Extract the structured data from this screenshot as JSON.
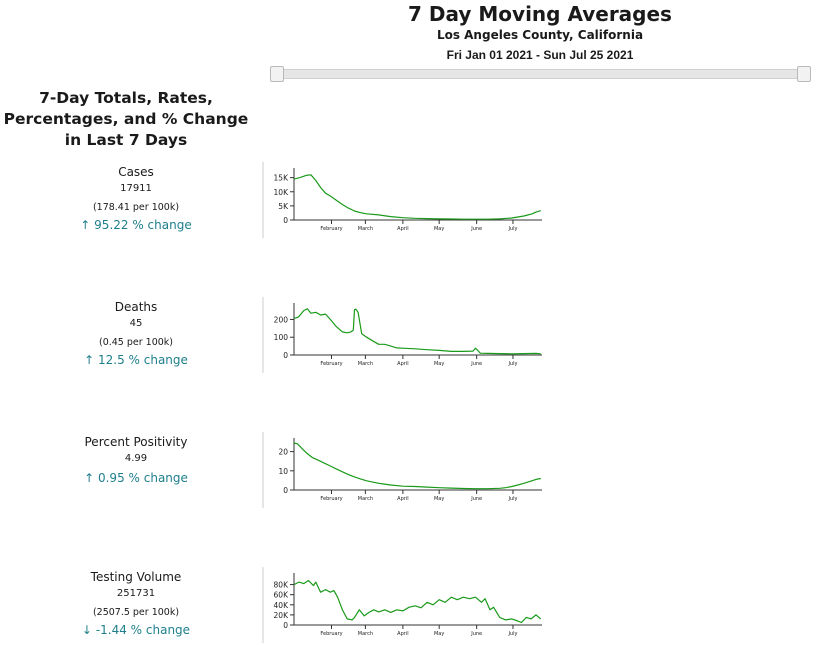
{
  "header": {
    "title": "7 Day Moving Averages",
    "subtitle": "Los Angeles County, California",
    "date_range": "Fri Jan 01 2021 - Sun Jul 25 2021"
  },
  "panel_title": "7-Day Totals, Rates, Percentages, and % Change in Last 7 Days",
  "metrics": [
    {
      "name": "Cases",
      "total": "17911",
      "rate": "(178.41 per 100k)",
      "change": "95.22 % change",
      "direction": "up"
    },
    {
      "name": "Deaths",
      "total": "45",
      "rate": "(0.45 per 100k)",
      "change": "12.5 % change",
      "direction": "up"
    },
    {
      "name": "Percent Positivity",
      "total": "4.99",
      "rate": "",
      "change": "0.95 % change",
      "direction": "up"
    },
    {
      "name": "Testing Volume",
      "total": "251731",
      "rate": "(2507.5 per 100k)",
      "change": "-1.44 % change",
      "direction": "down"
    }
  ],
  "colors": {
    "line": "#1a9a1a",
    "axis": "#333333",
    "change": "#1e7f8c",
    "separator": "#cccccc"
  },
  "chart_data": [
    {
      "type": "line",
      "title": "",
      "ylabel": "",
      "x_range": [
        0,
        205
      ],
      "ylim": [
        0,
        17000
      ],
      "month_ticks": [
        {
          "label": "February",
          "day": 31
        },
        {
          "label": "March",
          "day": 59
        },
        {
          "label": "April",
          "day": 90
        },
        {
          "label": "May",
          "day": 120
        },
        {
          "label": "June",
          "day": 151
        },
        {
          "label": "July",
          "day": 181
        }
      ],
      "y_ticks": [
        {
          "label": "0",
          "value": 0
        },
        {
          "label": "5K",
          "value": 5000
        },
        {
          "label": "10K",
          "value": 10000
        },
        {
          "label": "15K",
          "value": 15000
        }
      ],
      "x": [
        0,
        5,
        10,
        14,
        18,
        22,
        26,
        30,
        35,
        40,
        45,
        50,
        55,
        60,
        70,
        80,
        90,
        100,
        110,
        120,
        130,
        140,
        150,
        160,
        170,
        180,
        190,
        197,
        200,
        204
      ],
      "values": [
        14500,
        15000,
        15800,
        16000,
        14000,
        11500,
        9500,
        8500,
        7000,
        5500,
        4200,
        3200,
        2600,
        2200,
        1800,
        1200,
        800,
        600,
        500,
        400,
        350,
        300,
        280,
        300,
        400,
        700,
        1400,
        2200,
        2800,
        3300
      ]
    },
    {
      "type": "line",
      "title": "",
      "ylabel": "",
      "x_range": [
        0,
        205
      ],
      "ylim": [
        0,
        270
      ],
      "month_ticks": [
        {
          "label": "February",
          "day": 31
        },
        {
          "label": "March",
          "day": 59
        },
        {
          "label": "April",
          "day": 90
        },
        {
          "label": "May",
          "day": 120
        },
        {
          "label": "June",
          "day": 151
        },
        {
          "label": "July",
          "day": 181
        }
      ],
      "y_ticks": [
        {
          "label": "0",
          "value": 0
        },
        {
          "label": "100",
          "value": 100
        },
        {
          "label": "200",
          "value": 200
        }
      ],
      "x": [
        0,
        4,
        8,
        11,
        14,
        18,
        22,
        26,
        30,
        35,
        40,
        44,
        47,
        49,
        50,
        51,
        52,
        53,
        56,
        60,
        65,
        70,
        75,
        80,
        85,
        90,
        100,
        110,
        120,
        130,
        140,
        148,
        150,
        152,
        154,
        160,
        170,
        180,
        190,
        200,
        204
      ],
      "values": [
        205,
        215,
        250,
        260,
        235,
        240,
        225,
        230,
        200,
        160,
        130,
        125,
        130,
        140,
        255,
        258,
        250,
        240,
        120,
        100,
        80,
        60,
        60,
        50,
        40,
        38,
        35,
        30,
        26,
        20,
        20,
        22,
        38,
        25,
        10,
        9,
        8,
        7,
        8,
        9,
        7
      ]
    },
    {
      "type": "line",
      "title": "",
      "ylabel": "",
      "x_range": [
        0,
        205
      ],
      "ylim": [
        0,
        25
      ],
      "month_ticks": [
        {
          "label": "February",
          "day": 31
        },
        {
          "label": "March",
          "day": 59
        },
        {
          "label": "April",
          "day": 90
        },
        {
          "label": "May",
          "day": 120
        },
        {
          "label": "June",
          "day": 151
        },
        {
          "label": "July",
          "day": 181
        }
      ],
      "y_ticks": [
        {
          "label": "0",
          "value": 0
        },
        {
          "label": "10",
          "value": 10
        },
        {
          "label": "20",
          "value": 20
        }
      ],
      "x": [
        0,
        3,
        6,
        10,
        15,
        20,
        25,
        30,
        35,
        40,
        45,
        50,
        55,
        60,
        70,
        80,
        90,
        100,
        110,
        120,
        130,
        140,
        150,
        160,
        170,
        175,
        180,
        185,
        190,
        195,
        200,
        204
      ],
      "values": [
        24.5,
        24,
        22,
        19.5,
        17,
        15.5,
        14,
        12.5,
        11,
        9.5,
        8,
        6.8,
        5.8,
        4.8,
        3.5,
        2.6,
        2.0,
        1.8,
        1.5,
        1.2,
        1.0,
        0.8,
        0.7,
        0.7,
        0.9,
        1.2,
        1.8,
        2.6,
        3.5,
        4.5,
        5.5,
        6.0
      ]
    },
    {
      "type": "line",
      "title": "",
      "ylabel": "",
      "x_range": [
        0,
        205
      ],
      "ylim": [
        0,
        95000
      ],
      "month_ticks": [
        {
          "label": "February",
          "day": 31
        },
        {
          "label": "March",
          "day": 59
        },
        {
          "label": "April",
          "day": 90
        },
        {
          "label": "May",
          "day": 120
        },
        {
          "label": "June",
          "day": 151
        },
        {
          "label": "July",
          "day": 181
        }
      ],
      "y_ticks": [
        {
          "label": "0",
          "value": 0
        },
        {
          "label": "20K",
          "value": 20000
        },
        {
          "label": "40K",
          "value": 40000
        },
        {
          "label": "60K",
          "value": 60000
        },
        {
          "label": "80K",
          "value": 80000
        }
      ],
      "x": [
        0,
        4,
        8,
        12,
        16,
        18,
        22,
        26,
        30,
        33,
        36,
        40,
        44,
        48,
        50,
        54,
        58,
        62,
        66,
        70,
        75,
        80,
        85,
        90,
        95,
        100,
        105,
        110,
        115,
        120,
        125,
        130,
        135,
        140,
        145,
        150,
        155,
        158,
        162,
        165,
        170,
        175,
        180,
        185,
        188,
        192,
        196,
        200,
        204
      ],
      "values": [
        80000,
        85000,
        82000,
        88000,
        78000,
        85000,
        65000,
        70000,
        65000,
        68000,
        55000,
        30000,
        12000,
        10000,
        15000,
        30000,
        18000,
        25000,
        30000,
        26000,
        30000,
        25000,
        30000,
        28000,
        35000,
        38000,
        34000,
        45000,
        40000,
        50000,
        45000,
        55000,
        50000,
        55000,
        52000,
        55000,
        45000,
        52000,
        30000,
        35000,
        15000,
        10000,
        12000,
        8000,
        5000,
        15000,
        12000,
        20000,
        12000
      ]
    }
  ]
}
